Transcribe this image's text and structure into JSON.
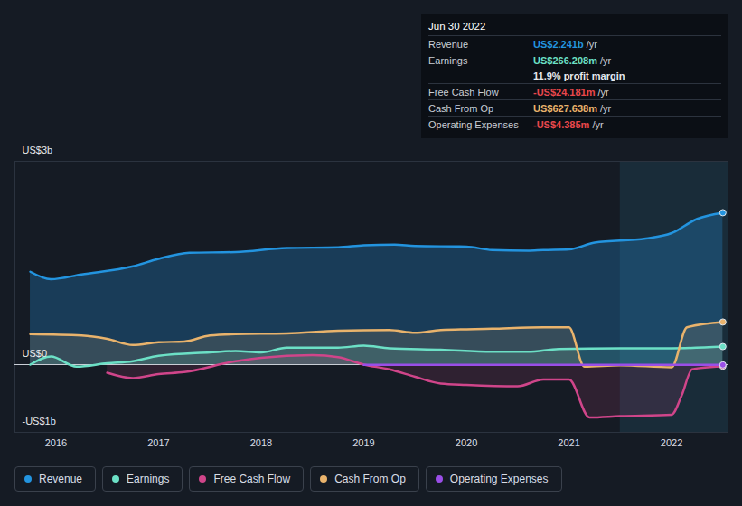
{
  "chart_data": {
    "type": "line",
    "xlim": [
      2015.6,
      2022.55
    ],
    "xticks": [
      2016,
      2017,
      2018,
      2019,
      2020,
      2021,
      2022
    ],
    "ylim": [
      -1,
      3
    ],
    "yticks": [
      {
        "value": 3,
        "label": "US$3b"
      },
      {
        "value": 0,
        "label": "US$0"
      },
      {
        "value": -1,
        "label": "-US$1b"
      }
    ],
    "grid": true,
    "highlight": [
      2021.5,
      2022.55
    ],
    "series": [
      {
        "name": "Revenue",
        "color": "#2394df",
        "x": [
          2015.75,
          2015.95,
          2016.25,
          2016.75,
          2017.0,
          2017.3,
          2017.75,
          2018.25,
          2018.75,
          2019.0,
          2019.3,
          2019.5,
          2020.0,
          2020.25,
          2020.6,
          2020.75,
          2021.0,
          2021.25,
          2021.75,
          2022.0,
          2022.25,
          2022.5
        ],
        "values": [
          1.37,
          1.26,
          1.33,
          1.45,
          1.56,
          1.65,
          1.66,
          1.72,
          1.73,
          1.76,
          1.77,
          1.75,
          1.74,
          1.69,
          1.68,
          1.69,
          1.7,
          1.8,
          1.86,
          1.94,
          2.15,
          2.241
        ]
      },
      {
        "name": "Earnings",
        "color": "#6ce0c6",
        "x": [
          2015.75,
          2015.95,
          2016.2,
          2016.5,
          2016.75,
          2017.0,
          2017.5,
          2017.75,
          2018.0,
          2018.25,
          2018.75,
          2019.0,
          2019.25,
          2019.75,
          2020.25,
          2020.6,
          2020.9,
          2021.5,
          2022.0,
          2022.5
        ],
        "values": [
          0.0,
          0.12,
          -0.03,
          0.02,
          0.05,
          0.13,
          0.18,
          0.2,
          0.18,
          0.25,
          0.25,
          0.28,
          0.24,
          0.22,
          0.19,
          0.19,
          0.23,
          0.24,
          0.24,
          0.266
        ]
      },
      {
        "name": "Free Cash Flow",
        "color": "#d0458a",
        "x": [
          2016.5,
          2016.75,
          2017.0,
          2017.25,
          2017.75,
          2018.0,
          2018.5,
          2018.75,
          2019.0,
          2019.25,
          2019.5,
          2019.75,
          2020.0,
          2020.5,
          2020.75,
          2021.0,
          2021.2,
          2021.5,
          2022.0,
          2022.1,
          2022.2,
          2022.5
        ],
        "values": [
          -0.12,
          -0.2,
          -0.14,
          -0.11,
          0.05,
          0.1,
          0.14,
          0.11,
          0.0,
          -0.07,
          -0.18,
          -0.28,
          -0.3,
          -0.32,
          -0.22,
          -0.22,
          -0.78,
          -0.76,
          -0.74,
          -0.45,
          -0.07,
          -0.024
        ]
      },
      {
        "name": "Cash From Op",
        "color": "#e9b36c",
        "x": [
          2015.75,
          2016.25,
          2016.5,
          2016.75,
          2017.0,
          2017.25,
          2017.5,
          2017.75,
          2018.25,
          2018.75,
          2019.25,
          2019.5,
          2019.75,
          2020.25,
          2020.75,
          2021.0,
          2021.15,
          2021.5,
          2022.0,
          2022.15,
          2022.5
        ],
        "values": [
          0.45,
          0.43,
          0.38,
          0.29,
          0.33,
          0.34,
          0.43,
          0.45,
          0.46,
          0.5,
          0.51,
          0.47,
          0.51,
          0.53,
          0.55,
          0.55,
          -0.03,
          -0.01,
          -0.04,
          0.55,
          0.6276
        ]
      },
      {
        "name": "Operating Expenses",
        "color": "#9a4ee8",
        "x": [
          2019.0,
          2020.0,
          2021.0,
          2022.0,
          2022.5
        ],
        "values": [
          -0.004,
          -0.004,
          -0.004,
          -0.004,
          -0.004385
        ]
      }
    ],
    "annotation": {
      "title": "Jun 30 2022",
      "rows": [
        {
          "label": "Revenue",
          "value": "US$2.241b",
          "unit": "/yr",
          "color": "#2394df"
        },
        {
          "label": "Earnings",
          "value": "US$266.208m",
          "unit": "/yr",
          "color": "#6ce0c6"
        },
        {
          "note": "11.9% profit margin"
        },
        {
          "label": "Free Cash Flow",
          "value": "-US$24.181m",
          "unit": "/yr",
          "color": "#e8474c"
        },
        {
          "label": "Cash From Op",
          "value": "US$627.638m",
          "unit": "/yr",
          "color": "#e9b36c"
        },
        {
          "label": "Operating Expenses",
          "value": "-US$4.385m",
          "unit": "/yr",
          "color": "#e8474c"
        }
      ]
    }
  }
}
